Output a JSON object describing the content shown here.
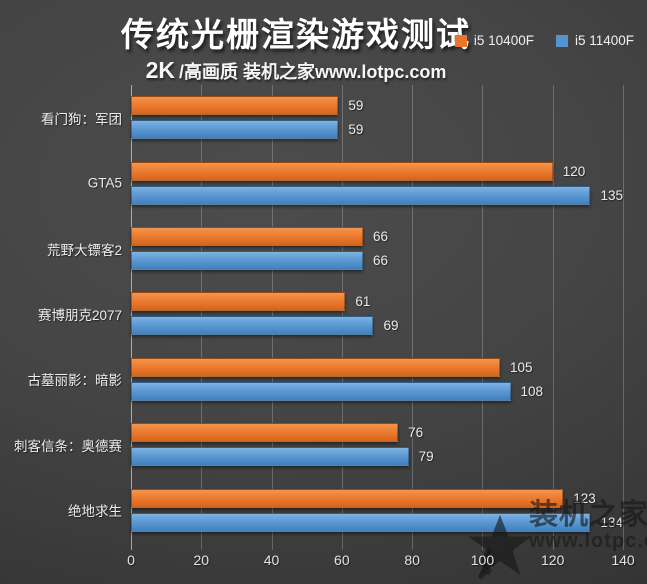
{
  "header": {
    "title": "传统光栅渲染游戏测试",
    "subtitle": {
      "resolution": "2K",
      "detail": "/高画质 装机之家www.lotpc.com"
    }
  },
  "chart_data": {
    "type": "bar",
    "orientation": "horizontal",
    "title": "传统光栅渲染游戏测试",
    "subtitle": "2K /高画质 装机之家www.lotpc.com",
    "categories": [
      "看门狗：军团",
      "GTA5",
      "荒野大镖客2",
      "赛博朋克2077",
      "古墓丽影：暗影",
      "刺客信条：奥德赛",
      "绝地求生"
    ],
    "series": [
      {
        "name": "i5 10400F",
        "color": "#E8762C",
        "values": [
          59,
          120,
          66,
          61,
          105,
          76,
          123
        ]
      },
      {
        "name": "i5 11400F",
        "color": "#5593CE",
        "values": [
          59,
          135,
          66,
          69,
          108,
          79,
          134
        ]
      }
    ],
    "xlabel": "",
    "ylabel": "",
    "xlim": [
      0,
      140
    ],
    "xticks": [
      0,
      20,
      40,
      60,
      80,
      100,
      120,
      140
    ],
    "grid": true,
    "legend_position": "top-right",
    "value_labels": true,
    "background_color": "#3F3F3F",
    "text_color": "#EDEDED"
  },
  "watermark": {
    "brand": "装机之家",
    "url": "www.lotpc.com",
    "icon": "star-logo"
  }
}
